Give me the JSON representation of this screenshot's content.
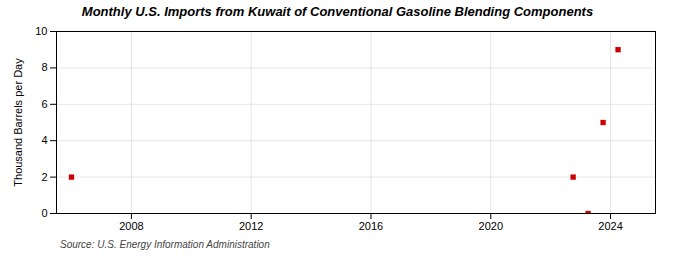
{
  "chart_data": {
    "type": "scatter",
    "title": "Monthly U.S. Imports from Kuwait of Conventional Gasoline Blending Components",
    "ylabel": "Thousand Barrels per Day",
    "source": "Source: U.S. Energy Information Administration",
    "x": [
      2006.0,
      2022.75,
      2023.25,
      2023.75,
      2024.25
    ],
    "values": [
      2,
      2,
      0,
      5,
      9
    ],
    "color": "#cc0000",
    "marker": "square",
    "xlim": [
      2005.5,
      2025.5
    ],
    "xticks": [
      2008,
      2012,
      2016,
      2020,
      2024
    ],
    "ylim": [
      0,
      10
    ],
    "yticks": [
      0,
      2,
      4,
      6,
      8,
      10
    ],
    "grid": true
  }
}
